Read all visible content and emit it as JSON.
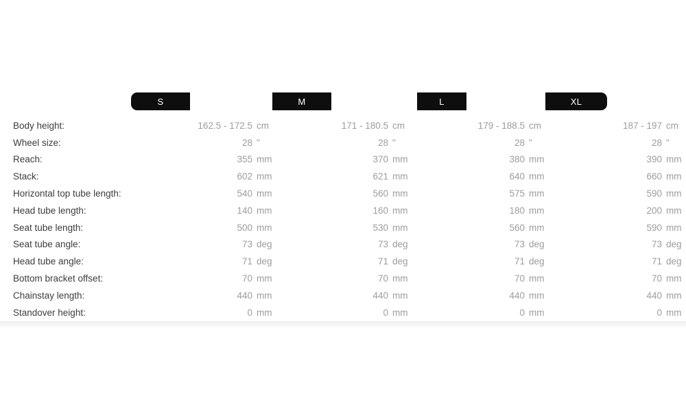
{
  "sizes": [
    {
      "label": "S",
      "tab_shape": "rounded-left"
    },
    {
      "label": "M",
      "tab_shape": "rectangular"
    },
    {
      "label": "L",
      "tab_shape": "rectangular"
    },
    {
      "label": "XL",
      "tab_shape": "rounded-right"
    }
  ],
  "rows": [
    {
      "label": "Body height:",
      "unit": "cm",
      "values": [
        "162.5 - 172.5",
        "171 - 180.5",
        "179 - 188.5",
        "187 - 197"
      ]
    },
    {
      "label": "Wheel size:",
      "unit": "\"",
      "values": [
        "28",
        "28",
        "28",
        "28"
      ]
    },
    {
      "label": "Reach:",
      "unit": "mm",
      "values": [
        "355",
        "370",
        "380",
        "390"
      ]
    },
    {
      "label": "Stack:",
      "unit": "mm",
      "values": [
        "602",
        "621",
        "640",
        "660"
      ]
    },
    {
      "label": "Horizontal top tube length:",
      "unit": "mm",
      "values": [
        "540",
        "560",
        "575",
        "590"
      ]
    },
    {
      "label": "Head tube length:",
      "unit": "mm",
      "values": [
        "140",
        "160",
        "180",
        "200"
      ]
    },
    {
      "label": "Seat tube length:",
      "unit": "mm",
      "values": [
        "500",
        "530",
        "560",
        "590"
      ]
    },
    {
      "label": "Seat tube angle:",
      "unit": "deg",
      "values": [
        "73",
        "73",
        "73",
        "73"
      ]
    },
    {
      "label": "Head tube angle:",
      "unit": "deg",
      "values": [
        "71",
        "71",
        "71",
        "71"
      ]
    },
    {
      "label": "Bottom bracket offset:",
      "unit": "mm",
      "values": [
        "70",
        "70",
        "70",
        "70"
      ]
    },
    {
      "label": "Chainstay length:",
      "unit": "mm",
      "values": [
        "440",
        "440",
        "440",
        "440"
      ]
    },
    {
      "label": "Standover height:",
      "unit": "mm",
      "values": [
        "0",
        "0",
        "0",
        "0"
      ]
    }
  ],
  "colors": {
    "tab_background": "#0e0e0e",
    "tab_text": "#ffffff",
    "row_label": "#3c3c3c",
    "row_value": "#9c9c9c",
    "page_background": "#ffffff",
    "footer_shade": "#efefef"
  }
}
